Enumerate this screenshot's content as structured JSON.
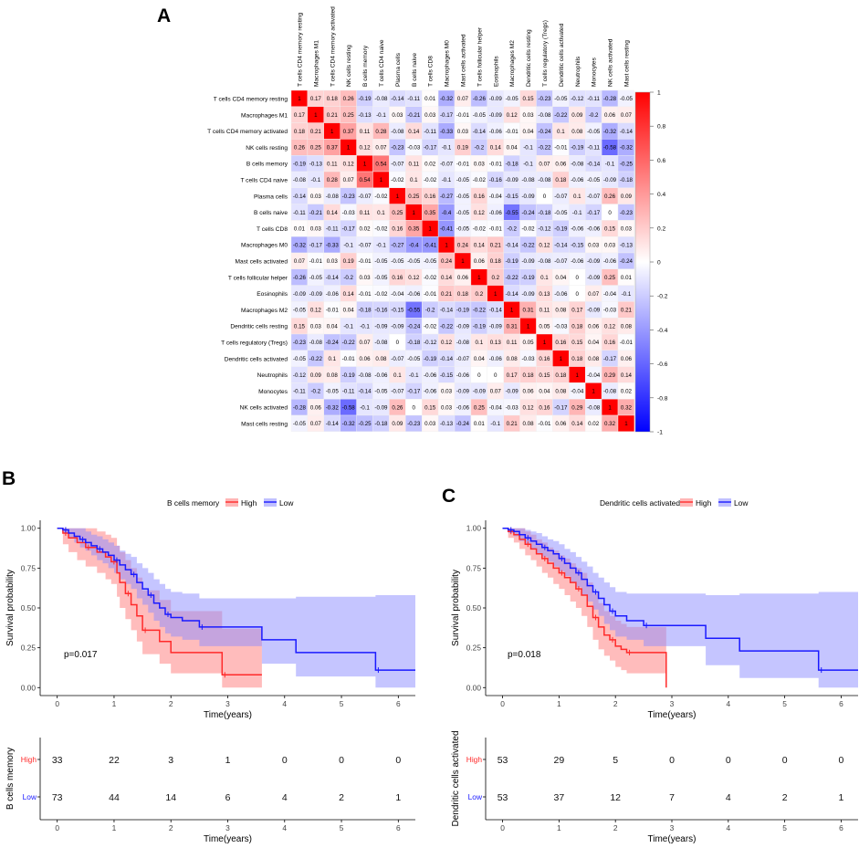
{
  "panel_labels": {
    "a": "A",
    "b": "B",
    "c": "C"
  },
  "colors": {
    "high": "#ff2a2a",
    "low": "#1a1aff",
    "high_fill": "#ff7a7a",
    "low_fill": "#8c8cff",
    "neg": "#0000ff",
    "zero": "#ffffff",
    "pos": "#ff0000"
  },
  "chart_data": [
    {
      "type": "heatmap",
      "title": "",
      "labels": [
        "T cells CD4 memory resting",
        "Macrophages M1",
        "T cells CD4 memory activated",
        "NK cells resting",
        "B cells memory",
        "T cells CD4 naive",
        "Plasma cells",
        "B cells naive",
        "T cells CD8",
        "Macrophages M0",
        "Mast cells activated",
        "T cells follicular helper",
        "Eosinophils",
        "Macrophages M2",
        "Dendritic cells resting",
        "T cells regulatory (Tregs)",
        "Dendritic cells activated",
        "Neutrophils",
        "Monocytes",
        "NK cells activated",
        "Mast cells resting"
      ],
      "matrix": [
        [
          "1",
          "0.17",
          "0.18",
          "0.26",
          "-0.19",
          "-0.08",
          "-0.14",
          "-0.11",
          "0.01",
          "-0.32",
          "0.07",
          "-0.26",
          "-0.09",
          "-0.05",
          "0.15",
          "-0.23",
          "-0.05",
          "-0.12",
          "-0.11",
          "-0.28",
          "-0.05"
        ],
        [
          "0.17",
          "1",
          "0.21",
          "0.25",
          "-0.13",
          "-0.1",
          "0.03",
          "-0.21",
          "0.03",
          "-0.17",
          "-0.01",
          "-0.05",
          "-0.09",
          "0.12",
          "0.03",
          "-0.08",
          "-0.22",
          "0.09",
          "-0.2",
          "0.06",
          "0.07"
        ],
        [
          "0.18",
          "0.21",
          "1",
          "0.37",
          "0.11",
          "0.28",
          "-0.08",
          "0.14",
          "-0.11",
          "-0.33",
          "0.03",
          "-0.14",
          "-0.06",
          "-0.01",
          "0.04",
          "-0.24",
          "0.1",
          "0.08",
          "-0.05",
          "-0.32",
          "-0.14"
        ],
        [
          "0.26",
          "0.25",
          "0.37",
          "1",
          "0.12",
          "0.07",
          "-0.23",
          "-0.03",
          "-0.17",
          "-0.1",
          "0.19",
          "-0.2",
          "0.14",
          "0.04",
          "-0.1",
          "-0.22",
          "-0.01",
          "-0.19",
          "-0.11",
          "-0.58",
          "-0.32"
        ],
        [
          "-0.19",
          "-0.13",
          "0.11",
          "0.12",
          "1",
          "0.54",
          "-0.07",
          "0.11",
          "0.02",
          "-0.07",
          "-0.01",
          "0.03",
          "-0.01",
          "-0.18",
          "-0.1",
          "0.07",
          "0.06",
          "-0.08",
          "-0.14",
          "-0.1",
          "-0.25"
        ],
        [
          "-0.08",
          "-0.1",
          "0.28",
          "0.07",
          "0.54",
          "1",
          "-0.02",
          "0.1",
          "-0.02",
          "-0.1",
          "-0.05",
          "-0.02",
          "-0.16",
          "-0.09",
          "-0.08",
          "-0.08",
          "0.18",
          "-0.06",
          "-0.05",
          "-0.09",
          "-0.18"
        ],
        [
          "-0.14",
          "0.03",
          "-0.08",
          "-0.23",
          "-0.07",
          "-0.02",
          "1",
          "0.25",
          "0.16",
          "-0.27",
          "-0.05",
          "0.16",
          "-0.04",
          "-0.15",
          "-0.09",
          "0",
          "-0.07",
          "0.1",
          "-0.07",
          "0.26",
          "0.09"
        ],
        [
          "-0.11",
          "-0.21",
          "0.14",
          "-0.03",
          "0.11",
          "0.1",
          "0.25",
          "1",
          "0.35",
          "-0.4",
          "-0.05",
          "0.12",
          "-0.06",
          "-0.55",
          "-0.24",
          "-0.18",
          "-0.05",
          "-0.1",
          "-0.17",
          "0",
          "-0.23"
        ],
        [
          "0.01",
          "0.03",
          "-0.11",
          "-0.17",
          "0.02",
          "-0.02",
          "0.16",
          "0.35",
          "1",
          "-0.41",
          "-0.05",
          "-0.02",
          "-0.01",
          "-0.2",
          "-0.02",
          "-0.12",
          "-0.19",
          "-0.06",
          "-0.06",
          "0.15",
          "0.03"
        ],
        [
          "-0.32",
          "-0.17",
          "-0.33",
          "-0.1",
          "-0.07",
          "-0.1",
          "-0.27",
          "-0.4",
          "-0.41",
          "1",
          "0.24",
          "0.14",
          "0.21",
          "-0.14",
          "-0.22",
          "0.12",
          "-0.14",
          "-0.15",
          "0.03",
          "0.03",
          "-0.13"
        ],
        [
          "0.07",
          "-0.01",
          "0.03",
          "0.19",
          "-0.01",
          "-0.05",
          "-0.05",
          "-0.05",
          "-0.05",
          "0.24",
          "1",
          "0.06",
          "0.18",
          "-0.19",
          "-0.09",
          "-0.08",
          "-0.07",
          "-0.06",
          "-0.09",
          "-0.06",
          "-0.24"
        ],
        [
          "-0.26",
          "-0.05",
          "-0.14",
          "-0.2",
          "0.03",
          "-0.05",
          "0.16",
          "0.12",
          "-0.02",
          "0.14",
          "0.06",
          "1",
          "0.2",
          "-0.22",
          "-0.19",
          "0.1",
          "0.04",
          "0",
          "-0.09",
          "0.25",
          "0.01"
        ],
        [
          "-0.09",
          "-0.09",
          "-0.06",
          "0.14",
          "-0.01",
          "-0.02",
          "-0.04",
          "-0.06",
          "-0.01",
          "0.21",
          "0.18",
          "0.2",
          "1",
          "-0.14",
          "-0.09",
          "0.13",
          "-0.06",
          "0",
          "0.07",
          "-0.04",
          "-0.1"
        ],
        [
          "-0.05",
          "0.12",
          "-0.01",
          "0.04",
          "-0.18",
          "-0.16",
          "-0.15",
          "-0.55",
          "-0.2",
          "-0.14",
          "-0.19",
          "-0.22",
          "-0.14",
          "1",
          "0.31",
          "0.11",
          "0.08",
          "0.17",
          "-0.09",
          "-0.03",
          "0.21"
        ],
        [
          "0.15",
          "0.03",
          "0.04",
          "-0.1",
          "-0.1",
          "-0.09",
          "-0.09",
          "-0.24",
          "-0.02",
          "-0.22",
          "-0.09",
          "-0.19",
          "-0.09",
          "0.31",
          "1",
          "0.05",
          "-0.03",
          "0.18",
          "0.06",
          "0.12",
          "0.08"
        ],
        [
          "-0.23",
          "-0.08",
          "-0.24",
          "-0.22",
          "0.07",
          "-0.08",
          "0",
          "-0.18",
          "-0.12",
          "0.12",
          "-0.08",
          "0.1",
          "0.13",
          "0.11",
          "0.05",
          "1",
          "0.16",
          "0.15",
          "0.04",
          "0.16",
          "-0.01"
        ],
        [
          "-0.05",
          "-0.22",
          "0.1",
          "-0.01",
          "0.06",
          "0.08",
          "-0.07",
          "-0.05",
          "-0.19",
          "-0.14",
          "-0.07",
          "0.04",
          "-0.06",
          "0.08",
          "-0.03",
          "0.16",
          "1",
          "0.18",
          "0.08",
          "-0.17",
          "0.06"
        ],
        [
          "-0.12",
          "0.09",
          "0.08",
          "-0.19",
          "-0.08",
          "-0.06",
          "0.1",
          "-0.1",
          "-0.06",
          "-0.15",
          "-0.06",
          "0",
          "0",
          "0.17",
          "0.18",
          "0.15",
          "0.18",
          "1",
          "-0.04",
          "0.29",
          "0.14"
        ],
        [
          "-0.11",
          "-0.2",
          "-0.05",
          "-0.11",
          "-0.14",
          "-0.05",
          "-0.07",
          "-0.17",
          "-0.06",
          "0.03",
          "-0.09",
          "-0.09",
          "0.07",
          "-0.09",
          "0.06",
          "0.04",
          "0.08",
          "-0.04",
          "1",
          "-0.08",
          "0.02"
        ],
        [
          "-0.28",
          "0.06",
          "-0.32",
          "-0.58",
          "-0.1",
          "-0.09",
          "0.26",
          "0",
          "0.15",
          "0.03",
          "-0.06",
          "0.25",
          "-0.04",
          "-0.03",
          "0.12",
          "0.16",
          "-0.17",
          "0.29",
          "-0.08",
          "1",
          "0.32"
        ],
        [
          "-0.05",
          "0.07",
          "-0.14",
          "-0.32",
          "-0.25",
          "-0.18",
          "0.09",
          "-0.23",
          "0.03",
          "-0.13",
          "-0.24",
          "0.01",
          "-0.1",
          "0.21",
          "0.08",
          "-0.01",
          "0.06",
          "0.14",
          "0.02",
          "0.32",
          "1"
        ]
      ],
      "colorbar_ticks": [
        "1",
        "0.8",
        "0.6",
        "0.4",
        "0.2",
        "0",
        "-0.2",
        "-0.4",
        "-0.6",
        "-0.8",
        "-1"
      ]
    },
    {
      "type": "line",
      "title": "",
      "legend_title": "B cells memory",
      "legend": [
        "High",
        "Low"
      ],
      "xlabel": "Time(years)",
      "ylabel": "Survival probability",
      "xlim": [
        -0.3,
        6.3
      ],
      "ylim": [
        -0.05,
        1.05
      ],
      "xticks": [
        "0",
        "1",
        "2",
        "3",
        "4",
        "5",
        "6"
      ],
      "yticks": [
        "0.00",
        "0.25",
        "0.50",
        "0.75",
        "1.00"
      ],
      "pvalue": "p=0.017",
      "series": [
        {
          "name": "High",
          "x": [
            0,
            0.1,
            0.2,
            0.35,
            0.5,
            0.7,
            0.85,
            0.95,
            1.05,
            1.1,
            1.2,
            1.3,
            1.4,
            1.5,
            1.8,
            2.0,
            2.9,
            3.6
          ],
          "y": [
            1.0,
            0.97,
            0.94,
            0.91,
            0.88,
            0.85,
            0.82,
            0.79,
            0.72,
            0.66,
            0.59,
            0.52,
            0.45,
            0.36,
            0.29,
            0.22,
            0.08,
            0.08
          ],
          "lower": [
            1.0,
            0.9,
            0.85,
            0.8,
            0.76,
            0.72,
            0.68,
            0.65,
            0.57,
            0.5,
            0.43,
            0.36,
            0.29,
            0.21,
            0.15,
            0.09,
            0.0,
            0.0
          ],
          "upper": [
            1.0,
            1.0,
            1.0,
            1.0,
            1.0,
            0.98,
            0.96,
            0.94,
            0.89,
            0.85,
            0.8,
            0.75,
            0.69,
            0.61,
            0.55,
            0.48,
            0.37,
            0.37
          ]
        },
        {
          "name": "Low",
          "x": [
            0,
            0.1,
            0.2,
            0.3,
            0.4,
            0.5,
            0.6,
            0.7,
            0.8,
            0.9,
            1.0,
            1.1,
            1.2,
            1.3,
            1.4,
            1.5,
            1.6,
            1.7,
            1.8,
            1.9,
            2.0,
            2.2,
            2.5,
            3.6,
            4.2,
            5.6,
            6.3
          ],
          "y": [
            1.0,
            0.99,
            0.97,
            0.95,
            0.93,
            0.91,
            0.89,
            0.87,
            0.85,
            0.83,
            0.8,
            0.77,
            0.74,
            0.71,
            0.66,
            0.62,
            0.58,
            0.53,
            0.5,
            0.46,
            0.44,
            0.42,
            0.38,
            0.3,
            0.22,
            0.11,
            0.11
          ],
          "lower": [
            1.0,
            0.97,
            0.94,
            0.91,
            0.88,
            0.86,
            0.83,
            0.8,
            0.78,
            0.75,
            0.72,
            0.68,
            0.65,
            0.62,
            0.56,
            0.52,
            0.47,
            0.42,
            0.38,
            0.34,
            0.32,
            0.3,
            0.26,
            0.15,
            0.07,
            0.0,
            0.0
          ],
          "upper": [
            1.0,
            1.0,
            1.0,
            1.0,
            1.0,
            0.98,
            0.96,
            0.95,
            0.93,
            0.91,
            0.89,
            0.86,
            0.84,
            0.82,
            0.78,
            0.75,
            0.72,
            0.68,
            0.65,
            0.62,
            0.6,
            0.59,
            0.56,
            0.56,
            0.57,
            0.58,
            0.58
          ]
        }
      ],
      "risk_table": {
        "ylabel": "B cells memory",
        "xlabel": "Time(years)",
        "rows": [
          {
            "label": "High",
            "values": [
              "33",
              "22",
              "3",
              "1",
              "0",
              "0",
              "0"
            ]
          },
          {
            "label": "Low",
            "values": [
              "73",
              "44",
              "14",
              "6",
              "4",
              "2",
              "1"
            ]
          }
        ]
      }
    },
    {
      "type": "line",
      "title": "",
      "legend_title": "Dendritic cells activated",
      "legend": [
        "High",
        "Low"
      ],
      "xlabel": "Time(years)",
      "ylabel": "Survival probability",
      "xlim": [
        -0.3,
        6.3
      ],
      "ylim": [
        -0.05,
        1.05
      ],
      "xticks": [
        "0",
        "1",
        "2",
        "3",
        "4",
        "5",
        "6"
      ],
      "yticks": [
        "0.00",
        "0.25",
        "0.50",
        "0.75",
        "1.00"
      ],
      "pvalue": "p=0.018",
      "series": [
        {
          "name": "High",
          "x": [
            0,
            0.1,
            0.2,
            0.3,
            0.4,
            0.5,
            0.6,
            0.7,
            0.8,
            0.9,
            1.0,
            1.1,
            1.2,
            1.3,
            1.4,
            1.5,
            1.6,
            1.7,
            1.8,
            1.9,
            2.0,
            2.1,
            2.2,
            2.8,
            2.9
          ],
          "y": [
            1.0,
            0.98,
            0.96,
            0.93,
            0.9,
            0.87,
            0.84,
            0.81,
            0.78,
            0.75,
            0.72,
            0.69,
            0.66,
            0.62,
            0.58,
            0.51,
            0.44,
            0.38,
            0.33,
            0.3,
            0.26,
            0.24,
            0.22,
            0.22,
            0.0
          ],
          "lower": [
            1.0,
            0.94,
            0.91,
            0.87,
            0.83,
            0.8,
            0.76,
            0.72,
            0.69,
            0.65,
            0.62,
            0.58,
            0.54,
            0.5,
            0.45,
            0.38,
            0.3,
            0.24,
            0.2,
            0.17,
            0.13,
            0.11,
            0.09,
            0.09,
            0.0
          ],
          "upper": [
            1.0,
            1.0,
            1.0,
            1.0,
            0.98,
            0.96,
            0.93,
            0.91,
            0.88,
            0.86,
            0.83,
            0.81,
            0.78,
            0.75,
            0.72,
            0.66,
            0.59,
            0.53,
            0.48,
            0.45,
            0.42,
            0.4,
            0.38,
            0.38,
            0.38
          ]
        },
        {
          "name": "Low",
          "x": [
            0,
            0.1,
            0.2,
            0.3,
            0.4,
            0.5,
            0.6,
            0.7,
            0.8,
            0.9,
            1.0,
            1.1,
            1.2,
            1.3,
            1.4,
            1.5,
            1.6,
            1.7,
            1.8,
            1.9,
            2.0,
            2.2,
            2.5,
            3.6,
            4.2,
            5.6,
            6.3
          ],
          "y": [
            1.0,
            0.99,
            0.98,
            0.96,
            0.94,
            0.92,
            0.9,
            0.88,
            0.86,
            0.84,
            0.81,
            0.78,
            0.75,
            0.72,
            0.68,
            0.64,
            0.6,
            0.56,
            0.52,
            0.48,
            0.45,
            0.42,
            0.39,
            0.31,
            0.23,
            0.11,
            0.11
          ],
          "lower": [
            1.0,
            0.97,
            0.95,
            0.92,
            0.9,
            0.87,
            0.84,
            0.82,
            0.79,
            0.76,
            0.73,
            0.7,
            0.66,
            0.63,
            0.58,
            0.54,
            0.49,
            0.45,
            0.4,
            0.36,
            0.32,
            0.3,
            0.26,
            0.14,
            0.06,
            0.0,
            0.0
          ],
          "upper": [
            1.0,
            1.0,
            1.0,
            1.0,
            0.99,
            0.98,
            0.97,
            0.95,
            0.93,
            0.92,
            0.9,
            0.87,
            0.85,
            0.82,
            0.79,
            0.76,
            0.72,
            0.69,
            0.66,
            0.63,
            0.6,
            0.59,
            0.59,
            0.58,
            0.59,
            0.6,
            0.6
          ]
        }
      ],
      "risk_table": {
        "ylabel": "Dendritic cells activated",
        "xlabel": "Time(years)",
        "rows": [
          {
            "label": "High",
            "values": [
              "53",
              "29",
              "5",
              "0",
              "0",
              "0",
              "0"
            ]
          },
          {
            "label": "Low",
            "values": [
              "53",
              "37",
              "12",
              "7",
              "4",
              "2",
              "1"
            ]
          }
        ]
      }
    }
  ]
}
